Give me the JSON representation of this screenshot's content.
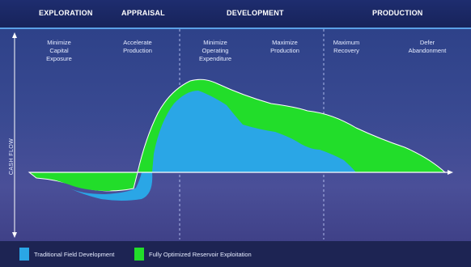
{
  "phases": [
    "EXPLORATION",
    "APPRAISAL",
    "DEVELOPMENT",
    "PRODUCTION"
  ],
  "stages": [
    "Minimize\nCapital\nExposure",
    "Accelerate\nProduction",
    "Minimize\nOperating\nExpenditure",
    "Maximize\nProduction",
    "Maximum\nRecovery",
    "Defer\nAbandonment"
  ],
  "y_axis_label": "CASH FLOW",
  "legend": [
    {
      "label": "Traditional Field Development",
      "color": "#2aa6e6"
    },
    {
      "label": "Fully Optimized Reservoir Exploitation",
      "color": "#22dd2a"
    }
  ],
  "colors": {
    "traditional": "#2aa6e6",
    "optimized": "#22dd2a"
  }
}
